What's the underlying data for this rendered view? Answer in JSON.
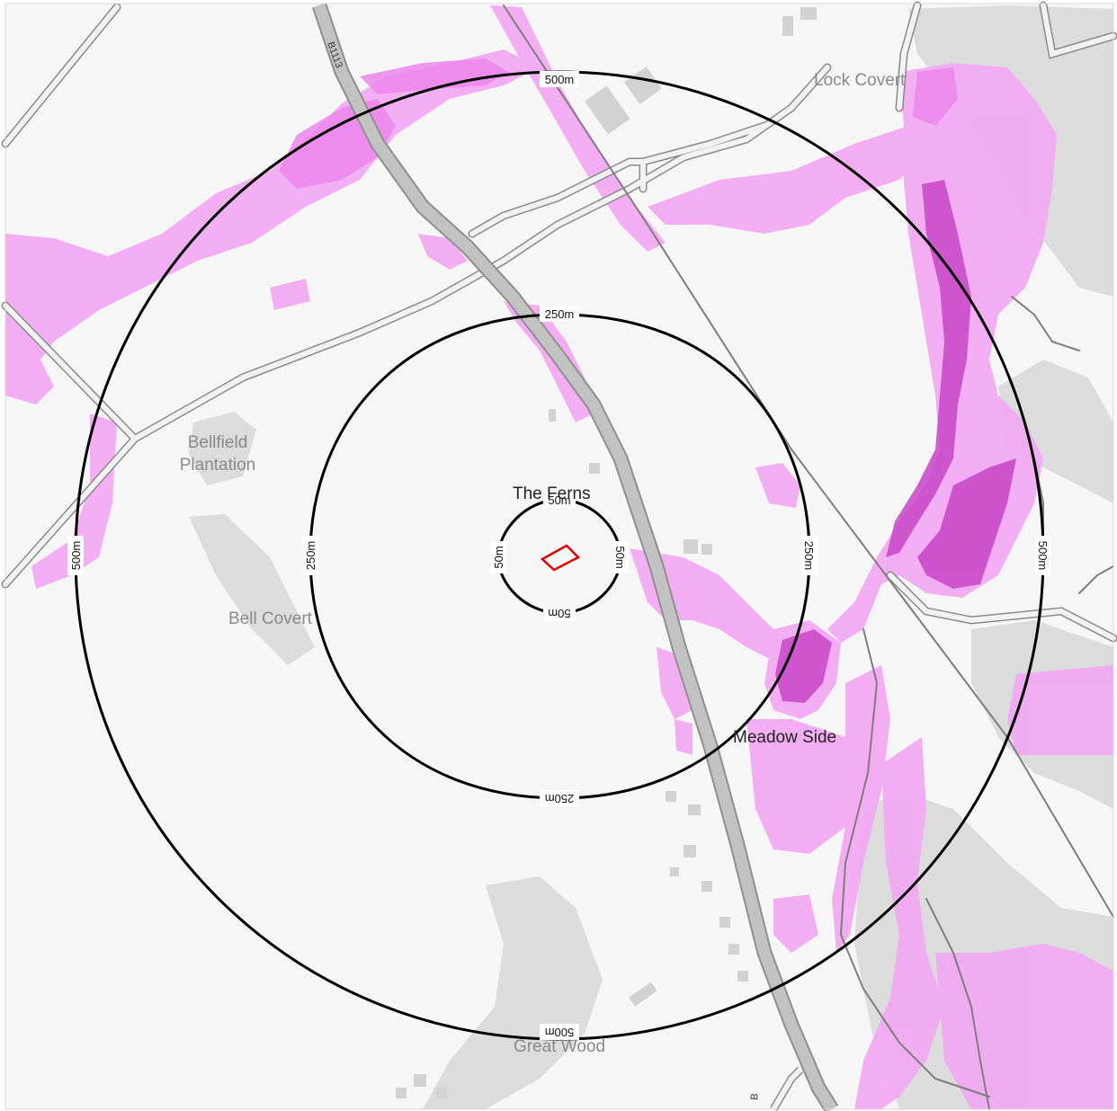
{
  "colors": {
    "background": "#f6f6f6",
    "woodland": "#dcdcdc",
    "road_fill": "#bdbdbd",
    "road_casing": "#8f8f8f",
    "minor_road": "#8a8a8a",
    "flood_light": "#f3a7f3",
    "flood_mid": "#e866e8",
    "flood_dark": "#c845c8",
    "buffer_ring": "#000000",
    "site_outline": "#e00000"
  },
  "road": {
    "ref": "B1113",
    "ref_bottom": "B"
  },
  "places": {
    "lock_covert": "Lock Covert",
    "bellfield_line1": "Bellfield",
    "bellfield_line2": "Plantation",
    "bell_covert": "Bell Covert",
    "the_ferns": "The Ferns",
    "meadow_side": "Meadow Side",
    "great_wood": "Great Wood"
  },
  "buffers": {
    "r500": "500m",
    "r250": "250m",
    "r50": "50m"
  }
}
